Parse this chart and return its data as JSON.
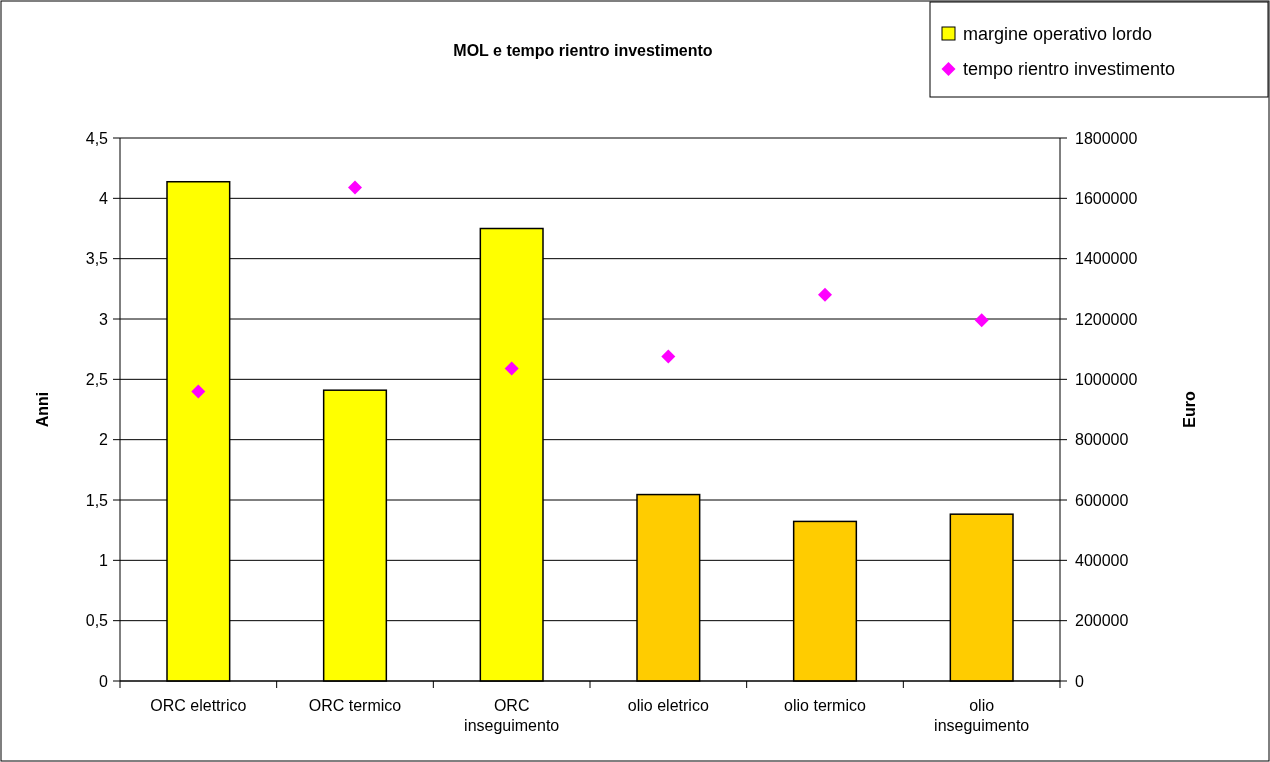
{
  "chart_data": {
    "type": "bar",
    "title": "MOL e tempo rientro investimento",
    "ylabel": "Anni",
    "y2label": "Euro",
    "categories": [
      "ORC elettrico",
      "ORC termico",
      "ORC inseguimento",
      "olio eletrico",
      "olio termico",
      "olio inseguimento"
    ],
    "series": [
      {
        "name": "margine operativo lordo",
        "axis": "y2",
        "color": "#ffff00",
        "colors": [
          "#ffff00",
          "#ffff00",
          "#ffff00",
          "#ffcc00",
          "#ffcc00",
          "#ffcc00"
        ],
        "values": [
          1655000,
          964000,
          1500000,
          618000,
          529000,
          553000
        ]
      },
      {
        "name": "tempo rientro investimento",
        "type": "scatter",
        "color": "#ff00ff",
        "marker": "diamond",
        "values": [
          2.4,
          4.09,
          2.59,
          2.69,
          3.2,
          2.99
        ]
      }
    ],
    "ylim": [
      0,
      4.5
    ],
    "yticks": [
      {
        "value": 0,
        "label": "0"
      },
      {
        "value": 0.5,
        "label": "0,5"
      },
      {
        "value": 1,
        "label": "1"
      },
      {
        "value": 1.5,
        "label": "1,5"
      },
      {
        "value": 2,
        "label": "2"
      },
      {
        "value": 2.5,
        "label": "2,5"
      },
      {
        "value": 3,
        "label": "3"
      },
      {
        "value": 3.5,
        "label": "3,5"
      },
      {
        "value": 4,
        "label": "4"
      },
      {
        "value": 4.5,
        "label": "4,5"
      }
    ],
    "y2lim": [
      0,
      1800000
    ],
    "y2ticks": [
      0,
      200000,
      400000,
      600000,
      800000,
      1000000,
      1200000,
      1400000,
      1600000,
      1800000
    ],
    "grid": "y",
    "legend": "top right"
  }
}
